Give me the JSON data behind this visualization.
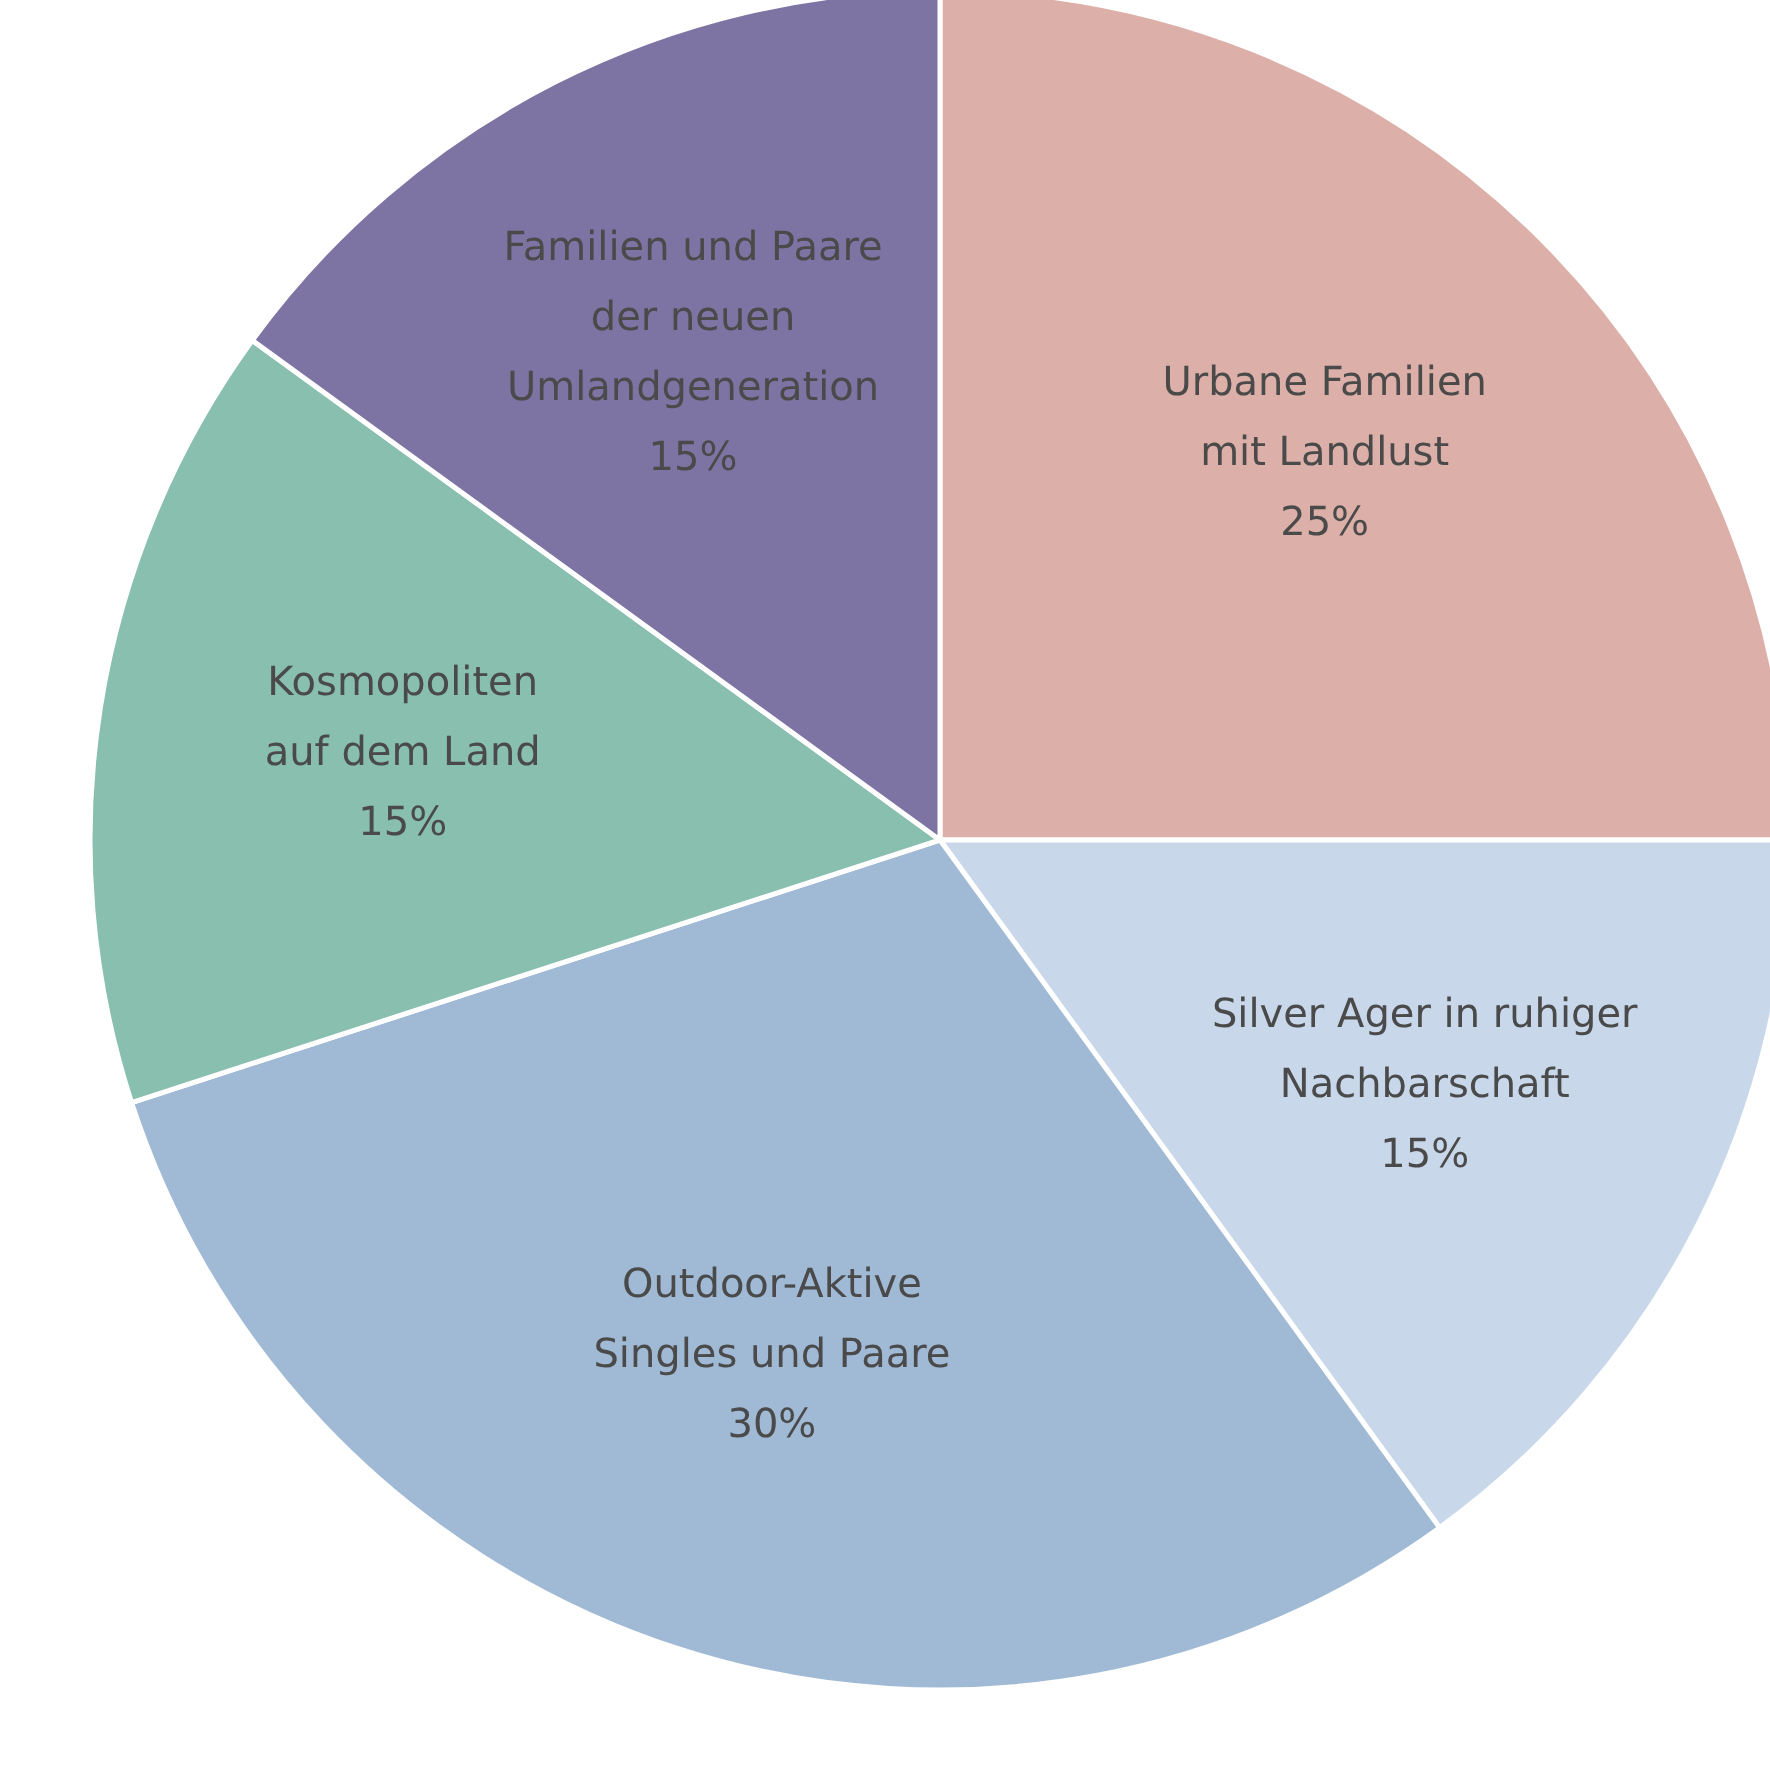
{
  "chart_data": {
    "type": "pie",
    "categories": [
      "Urbane Familien\nmit Landlust",
      "Silver Ager in ruhiger\nNachbarschaft",
      "Outdoor-Aktive\nSingles und Paare",
      "Kosmopoliten\nauf dem Land",
      "Familien und Paare\nder neuen\nUmlandgeneration"
    ],
    "values": [
      25,
      15,
      30,
      15,
      15
    ],
    "colors": [
      "#dcb0a8",
      "#c8d8ea",
      "#a0bad6",
      "#88bfae",
      "#7e74a4"
    ],
    "value_labels": [
      "25%",
      "15%",
      "30%",
      "15%",
      "15%"
    ]
  }
}
